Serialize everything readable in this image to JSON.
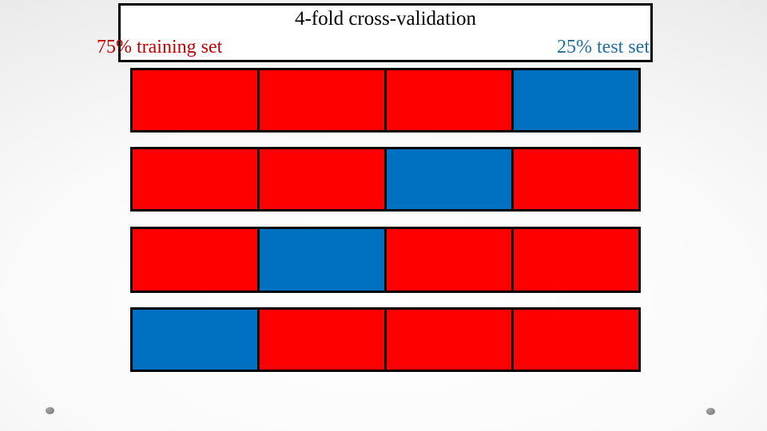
{
  "slide": {
    "title": "4-fold cross-validation",
    "left_label": "75% training set",
    "right_label": "25% test set"
  },
  "colors": {
    "train": "#ff0000",
    "test": "#0070c0",
    "train_label": "#c00000",
    "test_label": "#1f6ea5",
    "border": "#000000",
    "title_box_bg": "#ffffff",
    "decor_dot": "#8a8a8a"
  },
  "folds": {
    "rows": [
      {
        "name": "fold-1",
        "blocks": [
          "train",
          "train",
          "train",
          "test"
        ]
      },
      {
        "name": "fold-2",
        "blocks": [
          "train",
          "train",
          "test",
          "train"
        ]
      },
      {
        "name": "fold-3",
        "blocks": [
          "train",
          "test",
          "train",
          "train"
        ]
      },
      {
        "name": "fold-4",
        "blocks": [
          "test",
          "train",
          "train",
          "train"
        ]
      }
    ]
  }
}
